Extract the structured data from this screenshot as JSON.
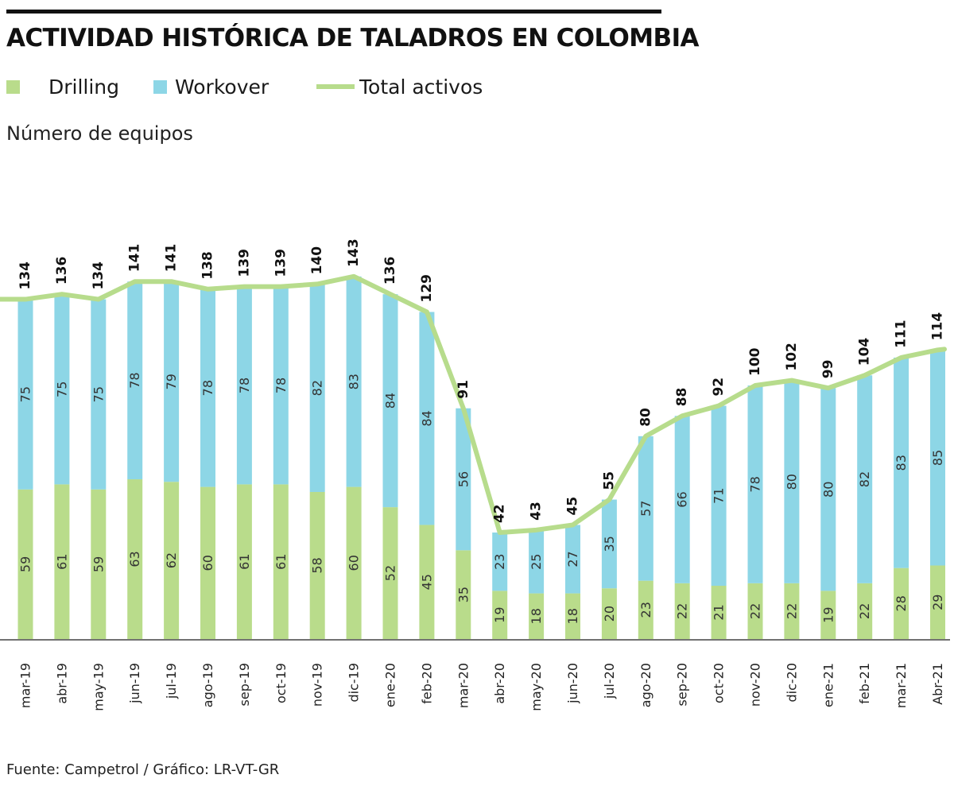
{
  "header": {
    "title": "ACTIVIDAD HISTÓRICA DE TALADROS EN COLOMBIA"
  },
  "legend": {
    "drilling": "Drilling",
    "workover": "Workover",
    "total": "Total activos"
  },
  "unit_label": "Número de equipos",
  "source": "Fuente: Campetrol / Gráfico: LR-VT-GR",
  "colors": {
    "drilling": "#b9dc8b",
    "workover": "#8dd6e6",
    "total_line": "#b7dc8c",
    "axis": "#444444",
    "text": "#1a1a1a"
  },
  "chart_data": {
    "type": "bar",
    "stacked": true,
    "title": "ACTIVIDAD HISTÓRICA DE TALADROS EN COLOMBIA",
    "ylabel": "Número de equipos",
    "xlabel": "",
    "ylim": [
      0,
      150
    ],
    "categories": [
      "mar-19",
      "abr-19",
      "may-19",
      "jun-19",
      "jul-19",
      "ago-19",
      "sep-19",
      "oct-19",
      "nov-19",
      "dic-19",
      "ene-20",
      "feb-20",
      "mar-20",
      "abr-20",
      "may-20",
      "jun-20",
      "jul-20",
      "ago-20",
      "sep-20",
      "oct-20",
      "nov-20",
      "dic-20",
      "ene-21",
      "feb-21",
      "mar-21",
      "Abr-21"
    ],
    "series": [
      {
        "name": "Drilling",
        "values": [
          59,
          61,
          59,
          63,
          62,
          60,
          61,
          61,
          58,
          60,
          52,
          45,
          35,
          19,
          18,
          18,
          20,
          23,
          22,
          21,
          22,
          22,
          19,
          22,
          28,
          29
        ]
      },
      {
        "name": "Workover",
        "values": [
          75,
          75,
          75,
          78,
          79,
          78,
          78,
          78,
          82,
          83,
          84,
          84,
          56,
          23,
          25,
          27,
          35,
          57,
          66,
          71,
          78,
          80,
          80,
          82,
          83,
          85
        ]
      },
      {
        "name": "Total activos",
        "type": "line",
        "values": [
          134,
          136,
          134,
          141,
          141,
          138,
          139,
          139,
          140,
          143,
          136,
          129,
          91,
          42,
          43,
          45,
          55,
          80,
          88,
          92,
          100,
          102,
          99,
          104,
          111,
          114
        ]
      }
    ]
  }
}
